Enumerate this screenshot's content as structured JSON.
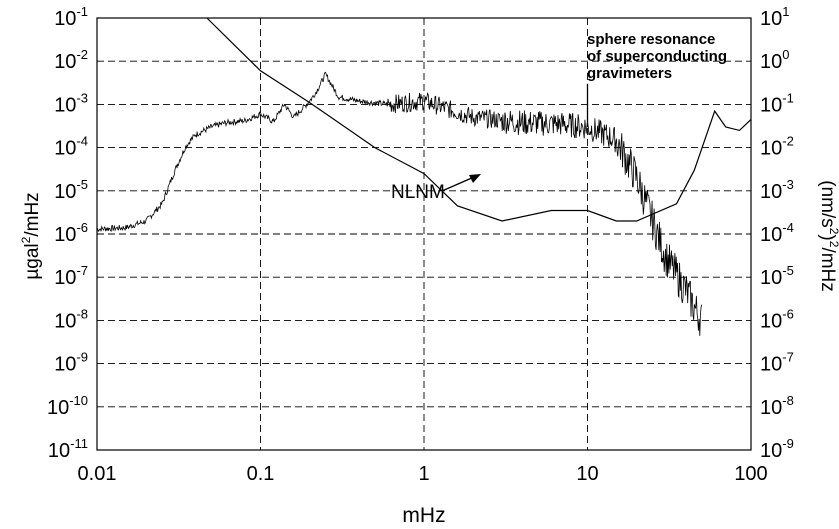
{
  "chart_data": {
    "type": "line",
    "x_axis": {
      "label": "mHz",
      "scale": "log",
      "range": [
        0.01,
        100
      ],
      "ticks": [
        {
          "value": 0.01,
          "label": "0.01"
        },
        {
          "value": 0.1,
          "label": "0.1"
        },
        {
          "value": 1,
          "label": "1"
        },
        {
          "value": 10,
          "label": "10"
        },
        {
          "value": 100,
          "label": "100"
        }
      ]
    },
    "y_axis_left": {
      "label_main": "µgal",
      "label_sup": "2",
      "label_rest": "/mHz",
      "scale": "log",
      "range_exp": [
        -11,
        -1
      ],
      "tick_base": "10",
      "tick_exponents": [
        "-1",
        "-2",
        "-3",
        "-4",
        "-5",
        "-6",
        "-7",
        "-8",
        "-9",
        "-10",
        "-11"
      ]
    },
    "y_axis_right": {
      "label_main": "(nm/s",
      "label_sup": "2",
      "label_rest": ")",
      "label_sup2": "2",
      "label_end": "/mHz",
      "scale": "log",
      "tick_base": "10",
      "tick_exponents": [
        "1",
        "0",
        "-1",
        "-2",
        "-3",
        "-4",
        "-5",
        "-6",
        "-7",
        "-8",
        "-9"
      ]
    },
    "grid": true,
    "annotations": {
      "resonance": [
        "sphere resonance",
        "of superconducting",
        "gravimeters"
      ],
      "nlnm": "NLNM"
    },
    "series": [
      {
        "name": "NLNM",
        "points": [
          [
            0.01,
            1.3e-06
          ],
          [
            0.015,
            1.4e-06
          ],
          [
            0.02,
            2e-06
          ],
          [
            0.025,
            5e-06
          ],
          [
            0.03,
            3e-05
          ],
          [
            0.035,
            0.00011
          ],
          [
            0.04,
            0.0002
          ],
          [
            0.05,
            0.0003
          ],
          [
            0.06,
            0.00037
          ],
          [
            0.07,
            0.0004
          ],
          [
            0.08,
            0.00042
          ],
          [
            0.1,
            0.0006
          ],
          [
            0.12,
            0.0004
          ],
          [
            0.14,
            0.001
          ],
          [
            0.16,
            0.0005
          ],
          [
            0.2,
            0.0012
          ],
          [
            0.22,
            0.002
          ],
          [
            0.25,
            0.005
          ],
          [
            0.3,
            0.0015
          ],
          [
            0.4,
            0.0012
          ],
          [
            0.6,
            0.001
          ],
          [
            1,
            0.0012
          ],
          [
            2,
            0.0005
          ],
          [
            4,
            0.00038
          ],
          [
            7,
            0.00035
          ],
          [
            10,
            0.0003
          ],
          [
            15,
            0.00015
          ],
          [
            20,
            2e-05
          ],
          [
            25,
            2e-06
          ],
          [
            30,
            3e-07
          ],
          [
            40,
            5e-08
          ],
          [
            45,
            2e-08
          ],
          [
            50,
            1e-08
          ]
        ],
        "noisy": true
      },
      {
        "name": "",
        "points": [
          [
            0.047,
            0.1
          ],
          [
            0.1,
            0.006
          ],
          [
            0.2,
            0.0011
          ],
          [
            0.5,
            0.0001
          ],
          [
            1,
            2.5e-05
          ],
          [
            1.6,
            4.5e-06
          ],
          [
            3,
            2e-06
          ],
          [
            6,
            3.5e-06
          ],
          [
            10,
            3.5e-06
          ],
          [
            15,
            2e-06
          ],
          [
            20,
            2e-06
          ],
          [
            35,
            5e-06
          ],
          [
            45,
            3e-05
          ],
          [
            60,
            0.0007
          ],
          [
            70,
            0.0003
          ],
          [
            85,
            0.00025
          ],
          [
            100,
            0.00045
          ]
        ],
        "noisy": false
      }
    ],
    "resonance_spike": {
      "x": 10,
      "y": 0.003
    }
  }
}
